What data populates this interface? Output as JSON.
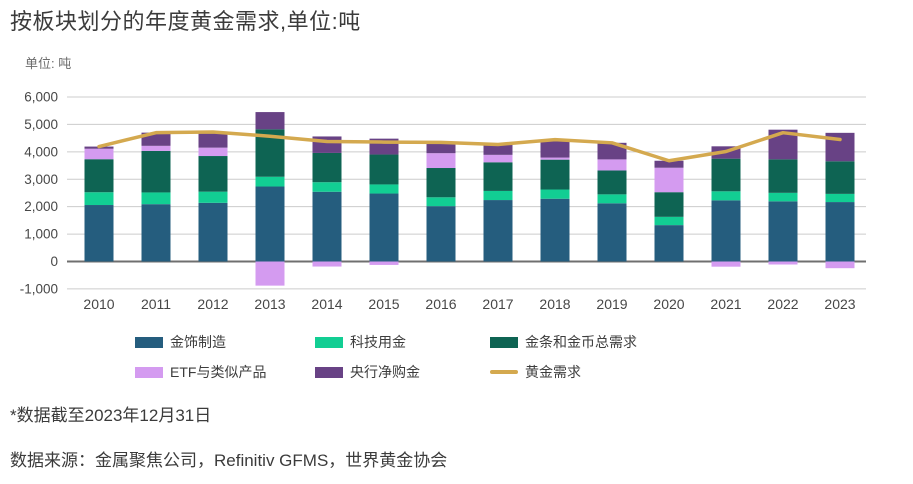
{
  "page": {
    "title": "按板块划分的年度黄金需求,单位:吨",
    "unit_label": "单位: 吨",
    "footnote": "*数据截至2023年12月31日",
    "source": "数据来源：金属聚焦公司，Refinitiv GFMS，世界黄金协会"
  },
  "colors": {
    "grid": "#cccccc",
    "zero_axis": "#6f6f6f",
    "axis_text": "#474747",
    "title_text": "#3b3b3b"
  },
  "chart_data": {
    "type": "bar",
    "stacked": true,
    "title": "按板块划分的年度黄金需求,单位:吨",
    "xlabel": "",
    "ylabel": "单位: 吨",
    "ylim": [
      -1000,
      6000
    ],
    "grid": true,
    "legend_position": "bottom",
    "yticks": [
      "6,000",
      "5,000",
      "4,000",
      "3,000",
      "2,000",
      "1,000",
      "0",
      "-1,000"
    ],
    "categories": [
      "2010",
      "2011",
      "2012",
      "2013",
      "2014",
      "2015",
      "2016",
      "2017",
      "2018",
      "2019",
      "2020",
      "2021",
      "2022",
      "2023"
    ],
    "series": [
      {
        "name": "金饰制造",
        "color": "#255d7e",
        "values": [
          2060,
          2091,
          2140,
          2735,
          2544,
          2479,
          2019,
          2241,
          2290,
          2123,
          1327,
          2230,
          2195,
          2168
        ]
      },
      {
        "name": "科技用金",
        "color": "#12ce93",
        "values": [
          466,
          428,
          407,
          356,
          348,
          332,
          323,
          333,
          335,
          326,
          302,
          330,
          309,
          298
        ]
      },
      {
        "name": "金条和金币总需求",
        "color": "#0e6453",
        "values": [
          1205,
          1515,
          1300,
          1730,
          1068,
          1090,
          1068,
          1045,
          1090,
          871,
          899,
          1191,
          1222,
          1190
        ]
      },
      {
        "name": "ETF与类似产品",
        "color": "#d49bf0",
        "values": [
          382,
          185,
          306,
          -880,
          -184,
          -125,
          541,
          271,
          76,
          404,
          892,
          -189,
          -110,
          -244
        ]
      },
      {
        "name": "央行净购金",
        "color": "#684285",
        "values": [
          79,
          481,
          569,
          629,
          601,
          580,
          395,
          379,
          656,
          605,
          255,
          450,
          1082,
          1037
        ]
      }
    ],
    "line": {
      "name": "黄金需求",
      "color": "#d4a94f",
      "values": [
        4192,
        4700,
        4722,
        4570,
        4377,
        4356,
        4346,
        4269,
        4447,
        4329,
        3675,
        4012,
        4698,
        4449
      ]
    }
  }
}
